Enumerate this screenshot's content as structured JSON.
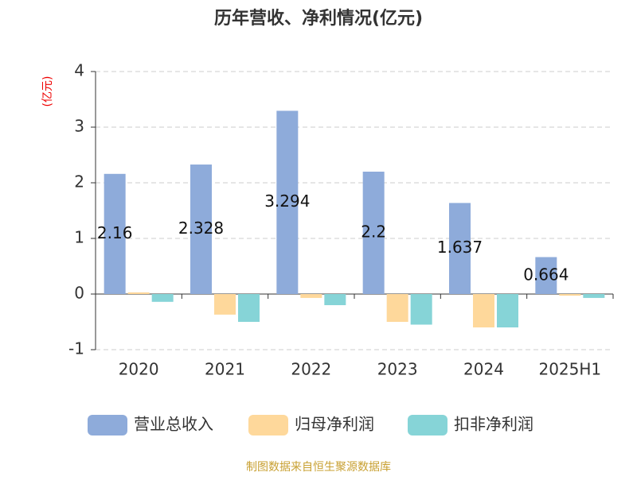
{
  "chart_data": {
    "type": "bar",
    "title": "历年营收、净利情况(亿元)",
    "y_label": "(亿元)",
    "source": "制图数据来自恒生聚源数据库",
    "categories": [
      "2020",
      "2021",
      "2022",
      "2023",
      "2024",
      "2025H1"
    ],
    "series": [
      {
        "name": "营业总收入",
        "color": "#8eabda",
        "values": [
          2.16,
          2.328,
          3.294,
          2.2,
          1.637,
          0.664
        ],
        "show_labels": true
      },
      {
        "name": "归母净利润",
        "color": "#fed89b",
        "values": [
          0.03,
          -0.37,
          -0.07,
          -0.5,
          -0.6,
          -0.03
        ]
      },
      {
        "name": "扣非净利润",
        "color": "#86d4d7",
        "values": [
          -0.14,
          -0.5,
          -0.2,
          -0.55,
          -0.6,
          -0.07
        ]
      }
    ],
    "ylim": [
      -1,
      4
    ],
    "yticks": [
      -1,
      0,
      1,
      2,
      3,
      4
    ],
    "grid": true
  }
}
